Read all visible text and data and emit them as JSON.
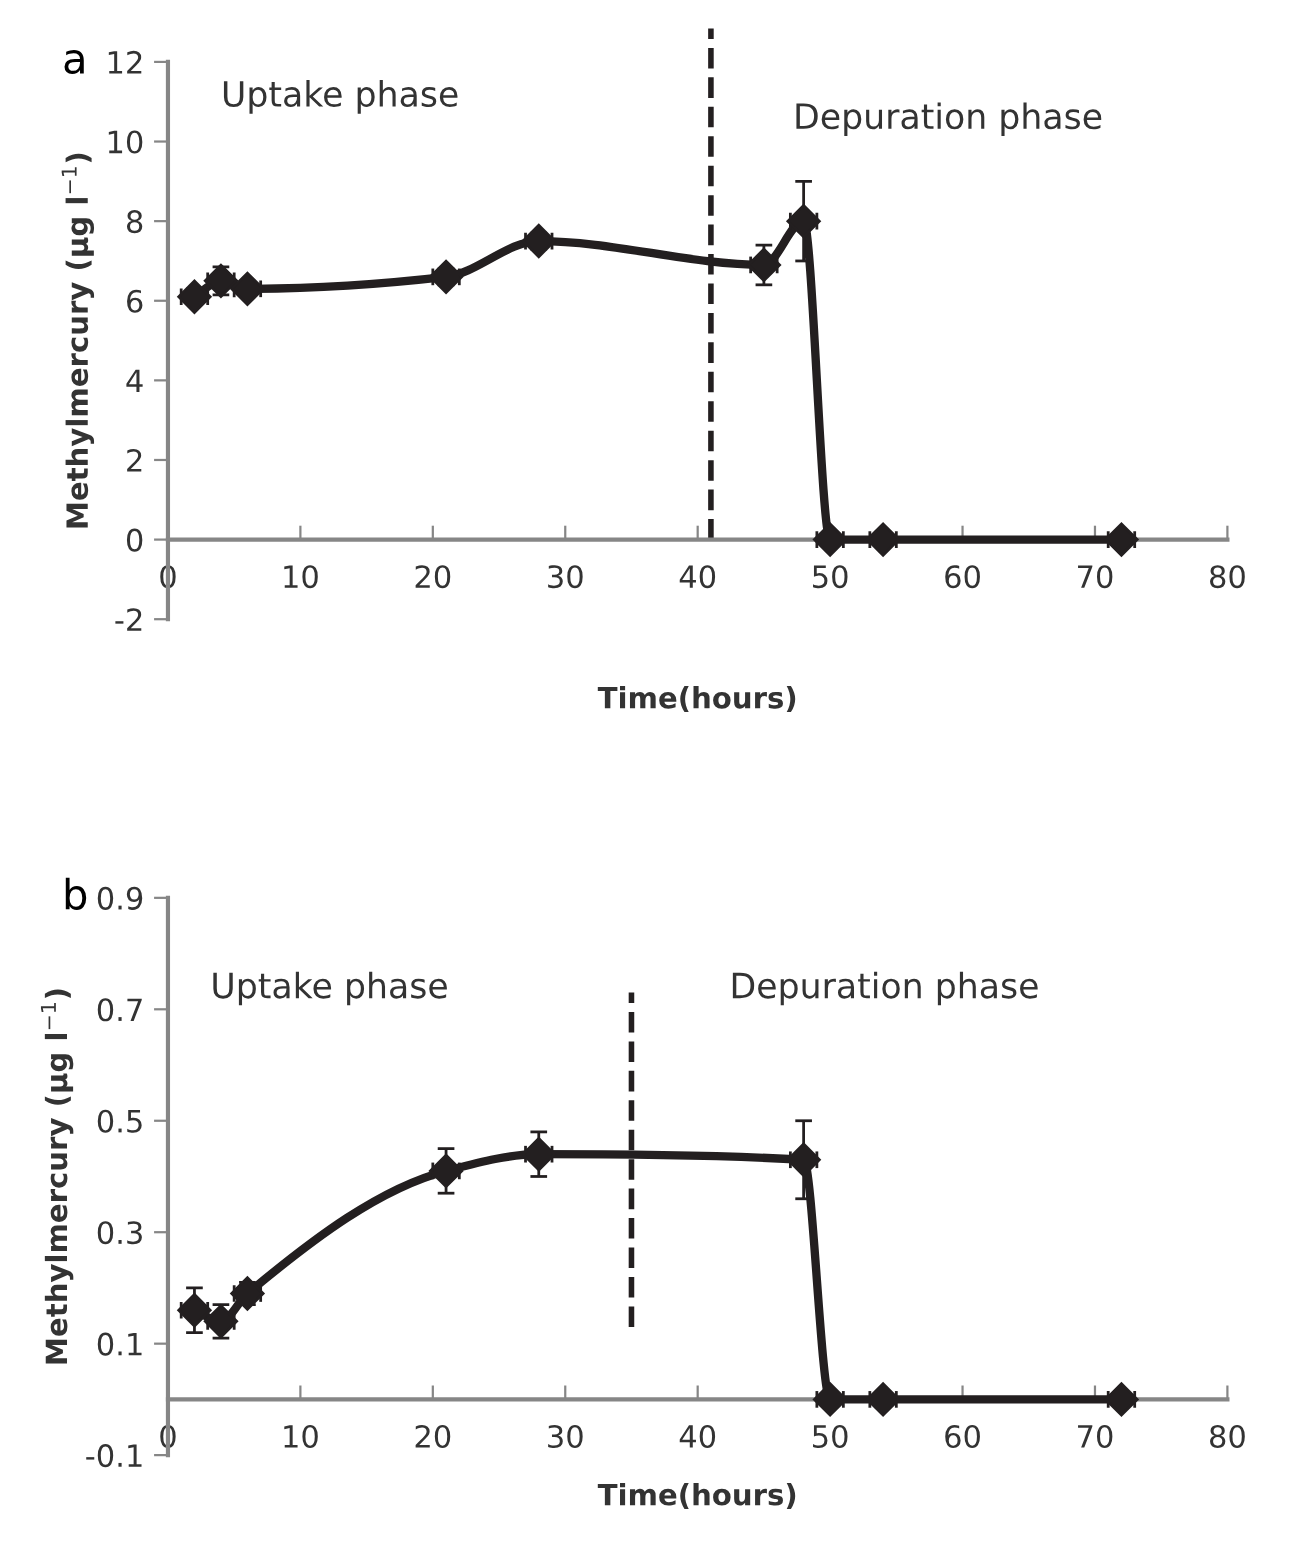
{
  "chart_data": [
    {
      "type": "line",
      "title": "a",
      "xlabel": "Time(hours)",
      "ylabel": "Methylmercury (µg l$^{−1}$)",
      "annotations": [
        "Uptake phase",
        "Depuration phase"
      ],
      "x": [
        2,
        4,
        6,
        21,
        28,
        45,
        48,
        50,
        54,
        72
      ],
      "series": [
        {
          "color": "#231f20",
          "values": [
            6.1,
            6.5,
            6.3,
            6.6,
            7.5,
            6.9,
            8.0,
            0,
            0,
            0
          ],
          "errors": [
            0.2,
            0.35,
            0.1,
            0.2,
            0.2,
            0.5,
            1.0,
            0,
            0,
            0
          ],
          "xerrors": [
            1,
            1,
            1,
            1,
            1,
            1,
            1,
            1,
            1,
            1
          ]
        }
      ],
      "xlim": [
        0,
        80
      ],
      "xticks": [
        0,
        10,
        20,
        30,
        40,
        50,
        60,
        70,
        80
      ],
      "ylim": [
        -2,
        12
      ],
      "yticks": [
        -2,
        0,
        2,
        4,
        6,
        8,
        10,
        12
      ],
      "ref_lines": [
        {
          "axis": "x",
          "value": 41,
          "line_style": "dashed",
          "color": "#231f20"
        }
      ],
      "marker": "diamond",
      "line_style": "solid",
      "grid": false,
      "legend": false
    },
    {
      "type": "line",
      "title": "b",
      "xlabel": "Time(hours)",
      "ylabel": "Methylmercury (µg l$^{−1}$)",
      "annotations": [
        "Uptake phase",
        "Depuration phase"
      ],
      "x": [
        2,
        4,
        6,
        21,
        28,
        48,
        50,
        54,
        72
      ],
      "series": [
        {
          "color": "#231f20",
          "values": [
            0.16,
            0.14,
            0.19,
            0.41,
            0.44,
            0.43,
            0,
            0,
            0
          ],
          "errors": [
            0.04,
            0.03,
            0.02,
            0.04,
            0.04,
            0.07,
            0,
            0,
            0
          ],
          "xerrors": [
            1,
            1,
            1,
            1,
            1,
            1,
            1,
            1,
            1
          ]
        }
      ],
      "xlim": [
        0,
        80
      ],
      "xticks": [
        0,
        10,
        20,
        30,
        40,
        50,
        60,
        70,
        80
      ],
      "ylim": [
        -0.1,
        0.9
      ],
      "yticks": [
        -0.1,
        0.1,
        0.3,
        0.5,
        0.7,
        0.9
      ],
      "ref_lines": [
        {
          "axis": "x",
          "value": 35,
          "line_style": "dashed",
          "color": "#231f20"
        }
      ],
      "marker": "diamond",
      "line_style": "solid",
      "grid": false,
      "legend": false
    }
  ]
}
